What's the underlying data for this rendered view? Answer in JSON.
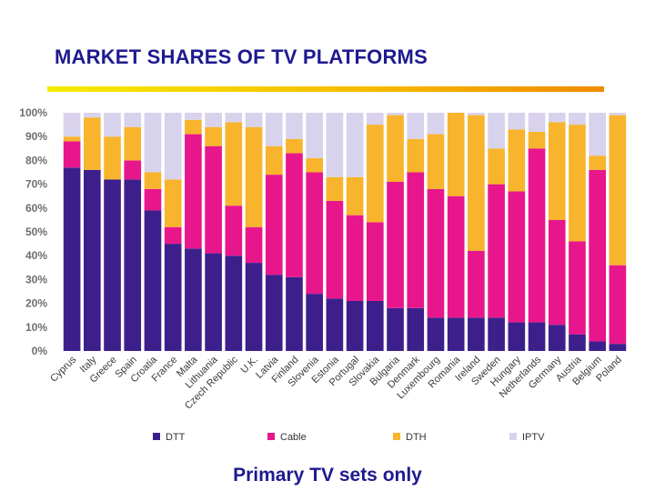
{
  "title": "MARKET SHARES OF TV PLATFORMS",
  "caption": "Primary TV sets only",
  "colors": {
    "title": "#1f1a8f",
    "accent_start": "#f4ec00",
    "accent_end": "#f08a00"
  },
  "chart_data": {
    "type": "bar",
    "stacked": true,
    "ylim": [
      0,
      100
    ],
    "yticks": [
      "0%",
      "10%",
      "20%",
      "30%",
      "40%",
      "50%",
      "60%",
      "70%",
      "80%",
      "90%",
      "100%"
    ],
    "legend_position": "bottom",
    "grid": false,
    "categories": [
      "Cyprus",
      "Italy",
      "Greece",
      "Spain",
      "Croatia",
      "France",
      "Malta",
      "Lithuania",
      "Czech Republic",
      "U.K.",
      "Latvia",
      "Finland",
      "Slovenia",
      "Estonia",
      "Portugal",
      "Slovakia",
      "Bulgaria",
      "Denmark",
      "Luxembourg",
      "Romania",
      "Ireland",
      "Sweden",
      "Hungary",
      "Netherlands",
      "Germany",
      "Austria",
      "Belgium",
      "Poland"
    ],
    "series": [
      {
        "name": "DTT",
        "color": "#3d1f8c",
        "values": [
          77,
          76,
          72,
          72,
          59,
          45,
          43,
          41,
          40,
          37,
          32,
          31,
          24,
          22,
          21,
          21,
          18,
          18,
          14,
          14,
          14,
          14,
          12,
          12,
          11,
          7,
          4,
          3
        ]
      },
      {
        "name": "Cable",
        "color": "#e8168c",
        "values": [
          11,
          0,
          0,
          8,
          9,
          7,
          48,
          45,
          21,
          15,
          42,
          52,
          51,
          41,
          36,
          33,
          53,
          57,
          54,
          51,
          28,
          56,
          55,
          73,
          44,
          39,
          72,
          33
        ]
      },
      {
        "name": "DTH",
        "color": "#f8b42c",
        "values": [
          2,
          22,
          18,
          14,
          7,
          20,
          6,
          8,
          35,
          42,
          12,
          6,
          6,
          10,
          16,
          41,
          28,
          14,
          23,
          35,
          57,
          15,
          26,
          7,
          41,
          49,
          6,
          63
        ]
      },
      {
        "name": "IPTV",
        "color": "#d8d2ec",
        "values": [
          10,
          2,
          10,
          6,
          25,
          28,
          3,
          6,
          4,
          6,
          14,
          11,
          19,
          27,
          27,
          5,
          1,
          11,
          9,
          0,
          1,
          15,
          7,
          8,
          4,
          5,
          18,
          1
        ]
      }
    ]
  }
}
